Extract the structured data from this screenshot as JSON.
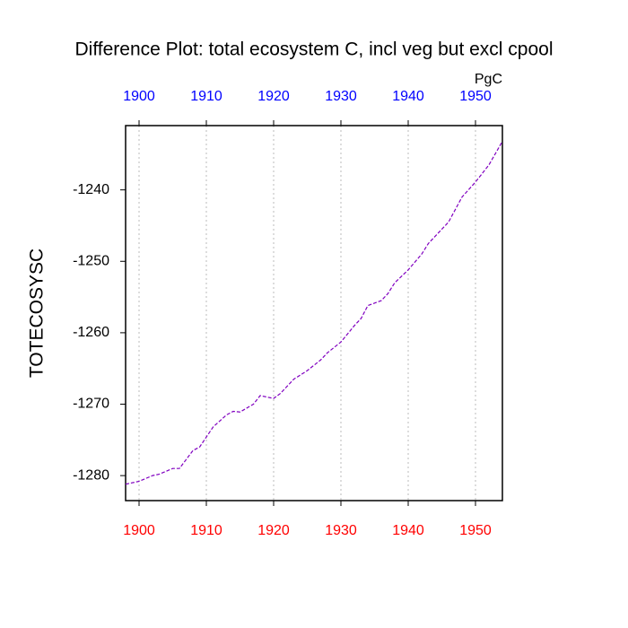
{
  "chart_data": {
    "type": "line",
    "title": "Difference Plot: total ecosystem C, incl veg but excl cpool",
    "units": "PgC",
    "y_label": "TOTECOSYSC",
    "x": [
      1898,
      1900,
      1902,
      1903,
      1905,
      1906,
      1908,
      1909,
      1911,
      1913,
      1914,
      1915,
      1917,
      1918,
      1920,
      1921,
      1923,
      1925,
      1927,
      1928,
      1930,
      1932,
      1933,
      1934,
      1936,
      1937,
      1938,
      1940,
      1942,
      1943,
      1945,
      1946,
      1948,
      1950,
      1952,
      1954
    ],
    "series": [
      {
        "color": "#8000c0",
        "values": [
          -1281.2,
          -1280.8,
          -1280.0,
          -1279.8,
          -1279.0,
          -1279.0,
          -1276.5,
          -1276.0,
          -1273.2,
          -1271.5,
          -1271.0,
          -1271.1,
          -1270.0,
          -1268.8,
          -1269.2,
          -1268.5,
          -1266.5,
          -1265.3,
          -1263.8,
          -1262.8,
          -1261.3,
          -1259.0,
          -1258.0,
          -1256.2,
          -1255.5,
          -1254.5,
          -1253.0,
          -1251.2,
          -1249.0,
          -1247.5,
          -1245.5,
          -1244.5,
          -1241.0,
          -1238.9,
          -1236.5,
          -1233.2
        ]
      }
    ],
    "xlim": [
      1898,
      1954
    ],
    "xticks": [
      1900,
      1910,
      1920,
      1930,
      1940,
      1950
    ],
    "ylim": [
      -1283.5,
      -1231
    ],
    "yticks": [
      -1280,
      -1270,
      -1260,
      -1250,
      -1240
    ],
    "top_tick_color": "#0000ff",
    "bottom_tick_color": "#ff0000",
    "grid": true
  }
}
